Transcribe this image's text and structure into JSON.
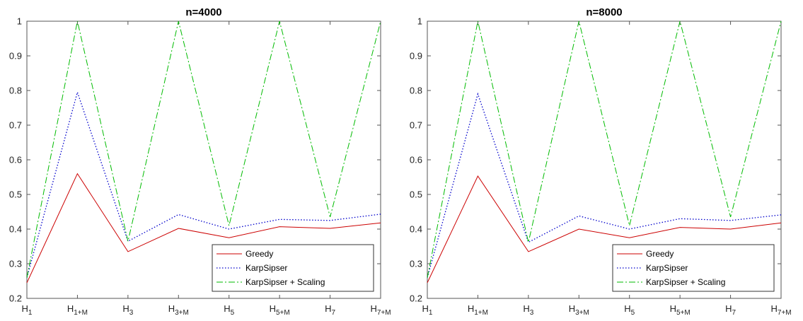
{
  "chart_data": [
    {
      "type": "line",
      "title": "n=4000",
      "categories": [
        {
          "base": "H",
          "sub": "1"
        },
        {
          "base": "H",
          "sub": "1+M"
        },
        {
          "base": "H",
          "sub": "3"
        },
        {
          "base": "H",
          "sub": "3+M"
        },
        {
          "base": "H",
          "sub": "5"
        },
        {
          "base": "H",
          "sub": "5+M"
        },
        {
          "base": "H",
          "sub": "7"
        },
        {
          "base": "H",
          "sub": "7+M"
        }
      ],
      "ylim": [
        0.2,
        1
      ],
      "yticks": [
        "0.2",
        "0.3",
        "0.4",
        "0.5",
        "0.6",
        "0.7",
        "0.8",
        "0.9",
        "1"
      ],
      "grid": false,
      "legend": "bottom-right",
      "series": [
        {
          "name": "Greedy",
          "color": "#cc0000",
          "style": "solid",
          "values": [
            0.245,
            0.56,
            0.335,
            0.402,
            0.375,
            0.407,
            0.402,
            0.418
          ]
        },
        {
          "name": "KarpSipser",
          "color": "#0000cc",
          "style": "dotted",
          "values": [
            0.26,
            0.795,
            0.365,
            0.442,
            0.4,
            0.428,
            0.425,
            0.443
          ]
        },
        {
          "name": "KarpSipser + Scaling",
          "color": "#00bb00",
          "style": "dashdot",
          "values": [
            0.26,
            1.0,
            0.365,
            1.0,
            0.41,
            1.0,
            0.435,
            1.0
          ]
        }
      ]
    },
    {
      "type": "line",
      "title": "n=8000",
      "categories": [
        {
          "base": "H",
          "sub": "1"
        },
        {
          "base": "H",
          "sub": "1+M"
        },
        {
          "base": "H",
          "sub": "3"
        },
        {
          "base": "H",
          "sub": "3+M"
        },
        {
          "base": "H",
          "sub": "5"
        },
        {
          "base": "H",
          "sub": "5+M"
        },
        {
          "base": "H",
          "sub": "7"
        },
        {
          "base": "H",
          "sub": "7+M"
        }
      ],
      "ylim": [
        0.2,
        1
      ],
      "yticks": [
        "0.2",
        "0.3",
        "0.4",
        "0.5",
        "0.6",
        "0.7",
        "0.8",
        "0.9",
        "1"
      ],
      "grid": false,
      "legend": "bottom-right",
      "series": [
        {
          "name": "Greedy",
          "color": "#cc0000",
          "style": "solid",
          "values": [
            0.245,
            0.553,
            0.335,
            0.4,
            0.375,
            0.405,
            0.4,
            0.418
          ]
        },
        {
          "name": "KarpSipser",
          "color": "#0000cc",
          "style": "dotted",
          "values": [
            0.26,
            0.79,
            0.362,
            0.438,
            0.4,
            0.43,
            0.425,
            0.441
          ]
        },
        {
          "name": "KarpSipser + Scaling",
          "color": "#00bb00",
          "style": "dashdot",
          "values": [
            0.26,
            1.0,
            0.362,
            1.0,
            0.41,
            1.0,
            0.435,
            1.0
          ]
        }
      ]
    }
  ]
}
